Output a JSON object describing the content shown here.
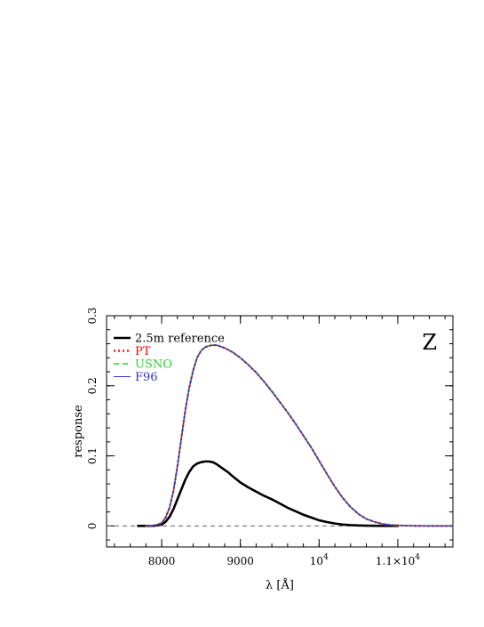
{
  "chart_data": {
    "type": "line",
    "panel_label": "Z",
    "xlabel": "λ [Å]",
    "ylabel": "response",
    "xlim": [
      7300,
      11700
    ],
    "ylim": [
      -0.03,
      0.3
    ],
    "x_ticks": [
      {
        "value": 8000,
        "label": "8000"
      },
      {
        "value": 9000,
        "label": "9000"
      },
      {
        "value": 10000,
        "label": "10",
        "sup": "4"
      },
      {
        "value": 11000,
        "label": "1.1×10",
        "sup": "4"
      }
    ],
    "x_minor_step": 200,
    "y_ticks": [
      {
        "value": 0,
        "label": "0"
      },
      {
        "value": 0.1,
        "label": "0.1"
      },
      {
        "value": 0.2,
        "label": "0.2"
      },
      {
        "value": 0.3,
        "label": "0.3"
      }
    ],
    "y_minor_step": 0.02,
    "zero_line": true,
    "legend_placement": "top-left",
    "series": [
      {
        "name": "2.5m reference",
        "color": "#000000",
        "style": "solid-thick",
        "x": [
          7700,
          7800,
          7900,
          8000,
          8050,
          8100,
          8150,
          8200,
          8250,
          8300,
          8350,
          8400,
          8450,
          8500,
          8550,
          8600,
          8650,
          8700,
          8750,
          8800,
          8850,
          8900,
          9000,
          9100,
          9200,
          9300,
          9400,
          9500,
          9600,
          9700,
          9800,
          9900,
          10000,
          10100,
          10200,
          10300,
          10400,
          10500,
          10600,
          10700,
          10800,
          10900,
          11000
        ],
        "y": [
          0.0,
          0.0,
          0.0002,
          0.002,
          0.006,
          0.013,
          0.024,
          0.038,
          0.052,
          0.066,
          0.077,
          0.085,
          0.089,
          0.091,
          0.092,
          0.092,
          0.091,
          0.088,
          0.084,
          0.08,
          0.076,
          0.071,
          0.062,
          0.055,
          0.049,
          0.043,
          0.038,
          0.032,
          0.026,
          0.021,
          0.016,
          0.012,
          0.008,
          0.0055,
          0.0035,
          0.002,
          0.0012,
          0.0007,
          0.0004,
          0.0002,
          0.0001,
          0.0,
          0.0
        ]
      },
      {
        "name": "PT",
        "color": "#ff0000",
        "style": "dotted",
        "x": [
          7800,
          7900,
          8000,
          8050,
          8100,
          8150,
          8200,
          8250,
          8300,
          8350,
          8400,
          8450,
          8500,
          8550,
          8600,
          8650,
          8700,
          8750,
          8800,
          8850,
          8900,
          9000,
          9100,
          9200,
          9300,
          9400,
          9500,
          9600,
          9700,
          9800,
          9900,
          10000,
          10100,
          10200,
          10300,
          10400,
          10500,
          10600,
          10700,
          10800,
          10900,
          11000,
          11100,
          11200,
          11300,
          11400,
          11500,
          11600,
          11700
        ],
        "y": [
          0.0,
          0.0005,
          0.004,
          0.012,
          0.026,
          0.05,
          0.085,
          0.125,
          0.165,
          0.197,
          0.222,
          0.24,
          0.25,
          0.255,
          0.257,
          0.258,
          0.258,
          0.256,
          0.254,
          0.251,
          0.248,
          0.24,
          0.23,
          0.219,
          0.206,
          0.192,
          0.177,
          0.162,
          0.146,
          0.129,
          0.112,
          0.093,
          0.074,
          0.056,
          0.04,
          0.027,
          0.017,
          0.01,
          0.006,
          0.003,
          0.0015,
          0.0008,
          0.0004,
          0.0002,
          0.0001,
          0.0,
          0.0,
          0.0,
          0.0
        ]
      },
      {
        "name": "USNO",
        "color": "#33cc33",
        "style": "dashed",
        "x": [
          7800,
          7900,
          8000,
          8050,
          8100,
          8150,
          8200,
          8250,
          8300,
          8350,
          8400,
          8450,
          8500,
          8550,
          8600,
          8650,
          8700,
          8750,
          8800,
          8850,
          8900,
          9000,
          9100,
          9200,
          9300,
          9400,
          9500,
          9600,
          9700,
          9800,
          9900,
          10000,
          10100,
          10200,
          10300,
          10400,
          10500,
          10600,
          10700,
          10800,
          10900,
          11000,
          11100,
          11200,
          11300,
          11400,
          11500,
          11600,
          11700
        ],
        "y": [
          0.0,
          0.0005,
          0.004,
          0.012,
          0.026,
          0.05,
          0.085,
          0.125,
          0.165,
          0.197,
          0.222,
          0.24,
          0.25,
          0.255,
          0.257,
          0.258,
          0.258,
          0.256,
          0.254,
          0.251,
          0.248,
          0.24,
          0.23,
          0.219,
          0.206,
          0.192,
          0.177,
          0.162,
          0.146,
          0.129,
          0.112,
          0.093,
          0.074,
          0.056,
          0.04,
          0.027,
          0.017,
          0.01,
          0.006,
          0.003,
          0.0015,
          0.0008,
          0.0004,
          0.0002,
          0.0001,
          0.0,
          0.0,
          0.0,
          0.0
        ]
      },
      {
        "name": "F96",
        "color": "#3333cc",
        "style": "solid-thin",
        "x": [
          7800,
          7900,
          8000,
          8050,
          8100,
          8150,
          8200,
          8250,
          8300,
          8350,
          8400,
          8450,
          8500,
          8550,
          8600,
          8650,
          8700,
          8750,
          8800,
          8850,
          8900,
          9000,
          9100,
          9200,
          9300,
          9400,
          9500,
          9600,
          9700,
          9800,
          9900,
          10000,
          10100,
          10200,
          10300,
          10400,
          10500,
          10600,
          10700,
          10800,
          10900,
          11000,
          11100,
          11200,
          11300,
          11400,
          11500,
          11600,
          11700
        ],
        "y": [
          0.0,
          0.0005,
          0.004,
          0.012,
          0.026,
          0.05,
          0.085,
          0.125,
          0.165,
          0.197,
          0.222,
          0.24,
          0.25,
          0.255,
          0.257,
          0.258,
          0.258,
          0.256,
          0.254,
          0.251,
          0.248,
          0.24,
          0.23,
          0.219,
          0.206,
          0.192,
          0.177,
          0.162,
          0.146,
          0.129,
          0.112,
          0.093,
          0.074,
          0.056,
          0.04,
          0.027,
          0.017,
          0.01,
          0.006,
          0.003,
          0.0015,
          0.0008,
          0.0004,
          0.0002,
          0.0001,
          0.0,
          0.0,
          0.0,
          0.0
        ]
      }
    ]
  }
}
